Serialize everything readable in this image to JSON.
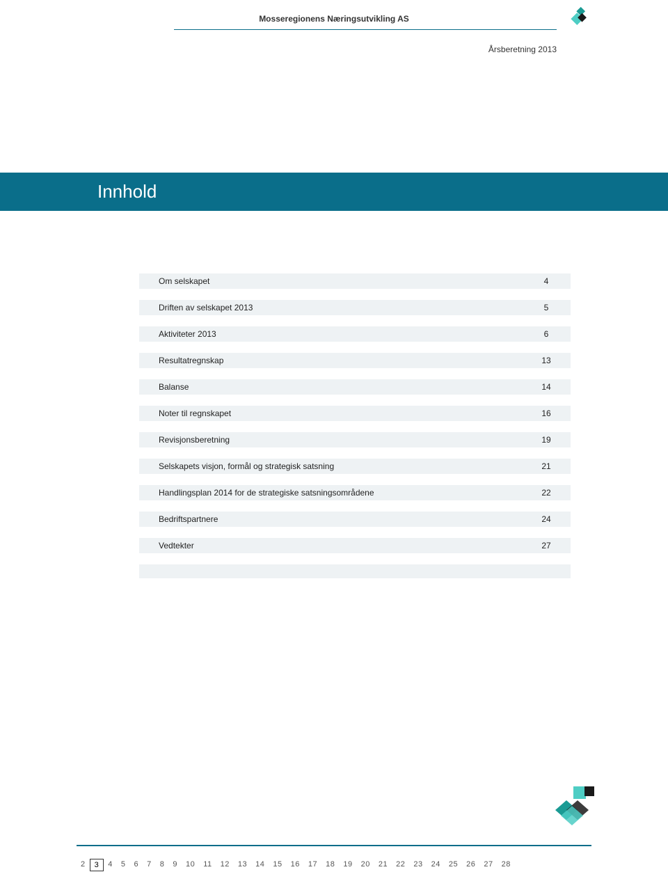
{
  "header": {
    "org_name": "Mosseregionens Næringsutvikling AS",
    "year_label": "Årsberetning 2013"
  },
  "section_title": "Innhold",
  "toc": [
    {
      "label": "Om selskapet",
      "page": "4"
    },
    {
      "label": "Driften av selskapet 2013",
      "page": "5"
    },
    {
      "label": "Aktiviteter 2013",
      "page": "6"
    },
    {
      "label": "Resultatregnskap",
      "page": "13"
    },
    {
      "label": "Balanse",
      "page": "14"
    },
    {
      "label": "Noter til regnskapet",
      "page": "16"
    },
    {
      "label": "Revisjonsberetning",
      "page": "19"
    },
    {
      "label": "Selskapets visjon, formål og strategisk satsning",
      "page": "21"
    },
    {
      "label": "Handlingsplan 2014 for de strategiske satsningsområdene",
      "page": "22"
    },
    {
      "label": "Bedriftspartnere",
      "page": "24"
    },
    {
      "label": "Vedtekter",
      "page": "27"
    }
  ],
  "pager": {
    "current": "3",
    "pages": [
      "2",
      "3",
      "4",
      "5",
      "6",
      "7",
      "8",
      "9",
      "10",
      "11",
      "12",
      "13",
      "14",
      "15",
      "16",
      "17",
      "18",
      "19",
      "20",
      "21",
      "22",
      "23",
      "24",
      "25",
      "26",
      "27",
      "28"
    ]
  },
  "colors": {
    "brand": "#0a6e8a",
    "row_bg": "#eef2f4",
    "teal": "#4ecdc4",
    "dark_teal": "#1a9b94",
    "dark": "#1a1a1a"
  }
}
